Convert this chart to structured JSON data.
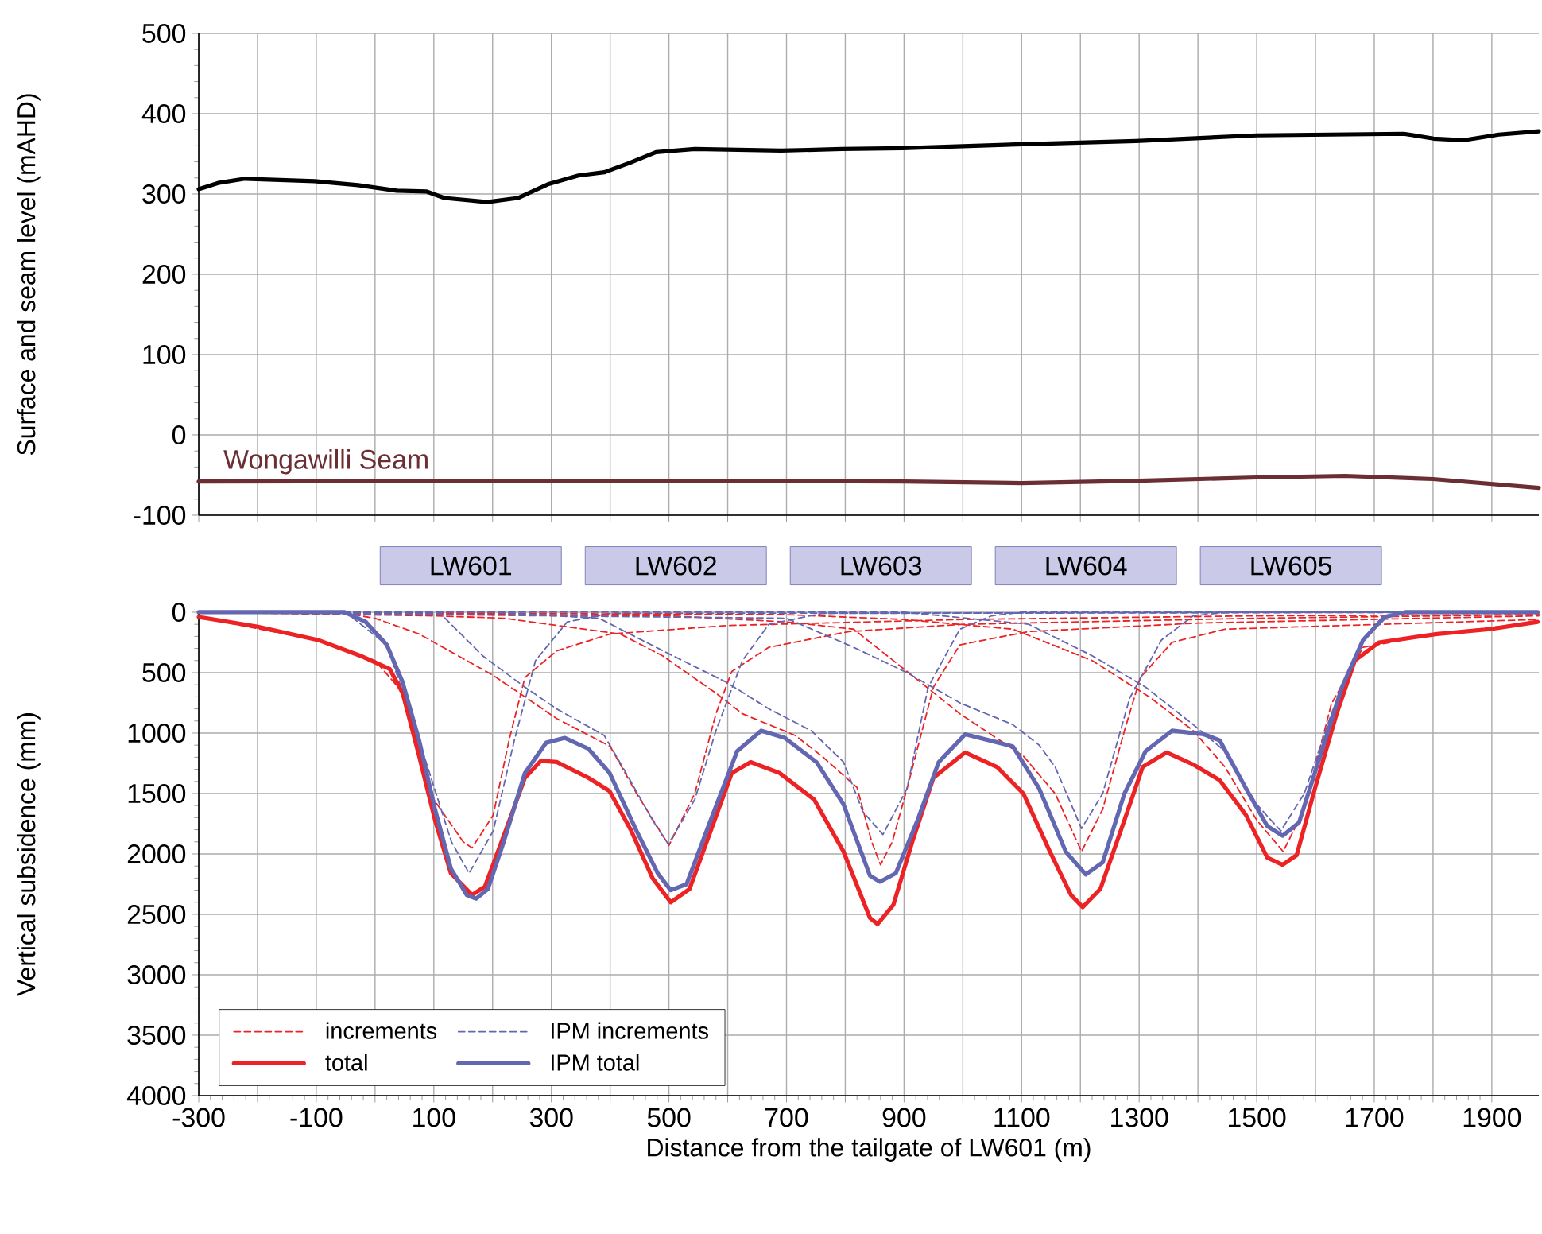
{
  "chart_data": [
    {
      "type": "line",
      "ylabel": "Surface and seam level (mAHD)",
      "xlim": [
        -300,
        1980
      ],
      "xticks": [
        -300,
        {
          "value": -200,
          "label": null
        },
        -100,
        {
          "value": 0,
          "label": null
        },
        100,
        {
          "value": 200,
          "label": null
        },
        300,
        {
          "value": 400,
          "label": null
        },
        500,
        {
          "value": 600,
          "label": null
        },
        700,
        {
          "value": 800,
          "label": null
        },
        900,
        {
          "value": 1000,
          "label": null
        },
        1100,
        {
          "value": 1200,
          "label": null
        },
        1300,
        {
          "value": 1400,
          "label": null
        },
        1500,
        {
          "value": 1600,
          "label": null
        },
        1700,
        {
          "value": 1800,
          "label": null
        },
        1900
      ],
      "ylim": [
        -100,
        500
      ],
      "yticks": [
        -100,
        0,
        100,
        200,
        300,
        400,
        500
      ],
      "grid": true,
      "tick_labels": "y",
      "series": [
        {
          "color": "#000000",
          "line_style": "solid",
          "x": [
            -300,
            -265,
            -221,
            -103,
            -29,
            37,
            88,
            118,
            191,
            243,
            294,
            346,
            390,
            434,
            478,
            544,
            691,
            794,
            897,
            1103,
            1294,
            1500,
            1750,
            1801,
            1853,
            1912,
            1980
          ],
          "values": [
            306,
            314,
            319,
            316,
            311,
            304,
            303,
            295,
            290,
            295,
            312,
            323,
            327,
            339,
            352,
            356,
            354,
            356,
            357,
            362,
            366,
            373,
            375,
            369,
            367,
            374,
            378
          ]
        },
        {
          "name": "Wongawilli Seam",
          "color": "#6b2f33",
          "line_style": "solid",
          "x": [
            -300,
            500,
            900,
            1100,
            1300,
            1500,
            1650,
            1800,
            1980
          ],
          "values": [
            -58,
            -57,
            -58,
            -60,
            -57,
            -53,
            -51,
            -55,
            -66
          ]
        }
      ]
    },
    {
      "type": "line",
      "xlabel": "Distance from the tailgate of LW601 (m)",
      "ylabel": "Vertical subsidence (mm)",
      "xlim": [
        -300,
        1980
      ],
      "xticks": [
        -300,
        {
          "value": -200,
          "label": null
        },
        -100,
        {
          "value": 0,
          "label": null
        },
        100,
        {
          "value": 200,
          "label": null
        },
        300,
        {
          "value": 400,
          "label": null
        },
        500,
        {
          "value": 600,
          "label": null
        },
        700,
        {
          "value": 800,
          "label": null
        },
        900,
        {
          "value": 1000,
          "label": null
        },
        1100,
        {
          "value": 1200,
          "label": null
        },
        1300,
        {
          "value": 1400,
          "label": null
        },
        1500,
        {
          "value": 1600,
          "label": null
        },
        1700,
        {
          "value": 1800,
          "label": null
        },
        1900
      ],
      "ylim": [
        4000,
        0
      ],
      "yticks": [
        0,
        500,
        1000,
        1500,
        2000,
        2500,
        3000,
        3500,
        4000
      ],
      "grid": true,
      "legend": "bottom left",
      "annotations": [
        "LW601",
        "LW602",
        "LW603",
        "LW604",
        "LW605"
      ],
      "series": [
        {
          "name": "increments",
          "color": "#ed2224",
          "line_style": "dashed",
          "x": [
            -300,
            -100,
            0,
            50,
            100,
            150,
            165,
            201,
            228,
            255,
            309,
            400,
            600,
            1000,
            1500,
            1980
          ],
          "values": [
            40,
            230,
            400,
            680,
            1550,
            1900,
            1950,
            1680,
            1060,
            540,
            320,
            180,
            110,
            60,
            30,
            20
          ]
        },
        {
          "name": "IPM increments",
          "color": "#6366b0",
          "line_style": "dashed",
          "x": [
            -300,
            -50,
            20,
            75,
            130,
            160,
            201,
            237,
            273,
            327,
            400,
            1980
          ],
          "values": [
            0,
            0,
            270,
            1060,
            1900,
            2160,
            1810,
            1060,
            400,
            80,
            10,
            0
          ]
        },
        {
          "name": "total",
          "color": "#ed2224",
          "line_style": "solid",
          "x": [
            -300,
            -199,
            -97,
            -25,
            25,
            47,
            75,
            102,
            129,
            165,
            187,
            219,
            255,
            282,
            309,
            363,
            399,
            436,
            472,
            503,
            535,
            571,
            607,
            639,
            688,
            747,
            797,
            842,
            855,
            882,
            914,
            950,
            1004,
            1058,
            1103,
            1148,
            1184,
            1204,
            1234,
            1275,
            1306,
            1347,
            1392,
            1437,
            1482,
            1518,
            1544,
            1568,
            1599,
            1636,
            1667,
            1708,
            1807,
            1897,
            1978
          ],
          "values": [
            40,
            120,
            230,
            360,
            470,
            670,
            1190,
            1720,
            2160,
            2340,
            2270,
            1850,
            1370,
            1230,
            1240,
            1370,
            1480,
            1810,
            2200,
            2400,
            2290,
            1810,
            1330,
            1240,
            1330,
            1550,
            1980,
            2530,
            2580,
            2420,
            1900,
            1370,
            1160,
            1280,
            1500,
            1980,
            2340,
            2440,
            2290,
            1720,
            1280,
            1160,
            1260,
            1390,
            1680,
            2030,
            2090,
            2010,
            1460,
            840,
            400,
            250,
            180,
            140,
            80
          ]
        },
        {
          "name": "IPM total",
          "color": "#6366b0",
          "line_style": "solid",
          "x": [
            -300,
            -52,
            -16,
            20,
            47,
            75,
            102,
            129,
            156,
            172,
            192,
            219,
            255,
            291,
            323,
            363,
            399,
            445,
            481,
            503,
            530,
            571,
            616,
            657,
            697,
            751,
            797,
            842,
            859,
            886,
            923,
            959,
            1004,
            1053,
            1085,
            1130,
            1175,
            1209,
            1238,
            1275,
            1311,
            1356,
            1410,
            1437,
            1482,
            1518,
            1544,
            1572,
            1608,
            1645,
            1681,
            1717,
            1753,
            1978
          ],
          "values": [
            0,
            0,
            80,
            270,
            580,
            1060,
            1630,
            2120,
            2340,
            2370,
            2290,
            1900,
            1330,
            1080,
            1040,
            1130,
            1330,
            1810,
            2160,
            2300,
            2250,
            1720,
            1150,
            980,
            1040,
            1240,
            1590,
            2180,
            2230,
            2160,
            1720,
            1240,
            1010,
            1070,
            1110,
            1460,
            1980,
            2170,
            2070,
            1500,
            1150,
            980,
            1010,
            1060,
            1460,
            1770,
            1850,
            1740,
            1190,
            620,
            230,
            40,
            0,
            0
          ]
        },
        {
          "color": "#ed2224",
          "line_style": "dashed",
          "x": [
            -300,
            -50,
            0,
            75,
            200,
            255,
            309,
            400,
            445,
            500,
            544,
            580,
            607,
            670,
            806,
            1000,
            1500,
            1980
          ],
          "values": [
            0,
            10,
            50,
            180,
            520,
            700,
            880,
            1110,
            1500,
            1930,
            1500,
            840,
            490,
            290,
            160,
            100,
            50,
            20
          ]
        },
        {
          "color": "#ed2224",
          "line_style": "dashed",
          "x": [
            -300,
            100,
            219,
            417,
            489,
            580,
            625,
            715,
            760,
            820,
            845,
            860,
            880,
            905,
            950,
            995,
            1112,
            1400,
            1980
          ],
          "values": [
            0,
            30,
            50,
            180,
            360,
            670,
            840,
            1020,
            1190,
            1450,
            1900,
            2090,
            1900,
            1460,
            620,
            270,
            160,
            90,
            30
          ]
        },
        {
          "color": "#ed2224",
          "line_style": "dashed",
          "x": [
            -300,
            500,
            700,
            814,
            905,
            995,
            1103,
            1157,
            1202,
            1238,
            1275,
            1302,
            1356,
            1446,
            1980
          ],
          "values": [
            0,
            30,
            80,
            140,
            490,
            840,
            1190,
            1500,
            1980,
            1630,
            980,
            540,
            250,
            140,
            60
          ]
        },
        {
          "color": "#ed2224",
          "line_style": "dashed",
          "x": [
            -300,
            700,
            900,
            1085,
            1220,
            1320,
            1392,
            1446,
            1500,
            1545,
            1581,
            1627,
            1681,
            1807,
            1978
          ],
          "values": [
            0,
            20,
            60,
            140,
            400,
            710,
            980,
            1280,
            1720,
            1980,
            1630,
            760,
            290,
            180,
            80
          ]
        },
        {
          "color": "#6366b0",
          "line_style": "dashed",
          "x": [
            -300,
            111,
            183,
            255,
            309,
            390,
            427,
            472,
            499,
            544,
            580,
            625,
            670,
            760,
            1980
          ],
          "values": [
            0,
            10,
            360,
            620,
            800,
            1020,
            1330,
            1720,
            1920,
            1550,
            980,
            400,
            100,
            10,
            0
          ]
        },
        {
          "color": "#6366b0",
          "line_style": "dashed",
          "x": [
            -300,
            200,
            381,
            490,
            598,
            670,
            742,
            797,
            830,
            864,
            905,
            941,
            995,
            1049,
            1100,
            1980
          ],
          "values": [
            0,
            0,
            50,
            320,
            580,
            800,
            980,
            1240,
            1650,
            1840,
            1460,
            620,
            140,
            30,
            0,
            0
          ]
        },
        {
          "color": "#6366b0",
          "line_style": "dashed",
          "x": [
            -300,
            700,
            814,
            905,
            995,
            1085,
            1130,
            1157,
            1202,
            1238,
            1284,
            1338,
            1392,
            1450,
            1980
          ],
          "values": [
            0,
            50,
            290,
            500,
            750,
            930,
            1100,
            1280,
            1790,
            1500,
            710,
            230,
            30,
            0,
            0
          ]
        },
        {
          "color": "#6366b0",
          "line_style": "dashed",
          "x": [
            -300,
            900,
            1112,
            1220,
            1311,
            1392,
            1446,
            1500,
            1541,
            1581,
            1627,
            1681,
            1726,
            1800,
            1980
          ],
          "values": [
            0,
            0,
            100,
            360,
            620,
            930,
            1150,
            1590,
            1810,
            1500,
            840,
            230,
            20,
            0,
            0
          ]
        }
      ]
    }
  ]
}
